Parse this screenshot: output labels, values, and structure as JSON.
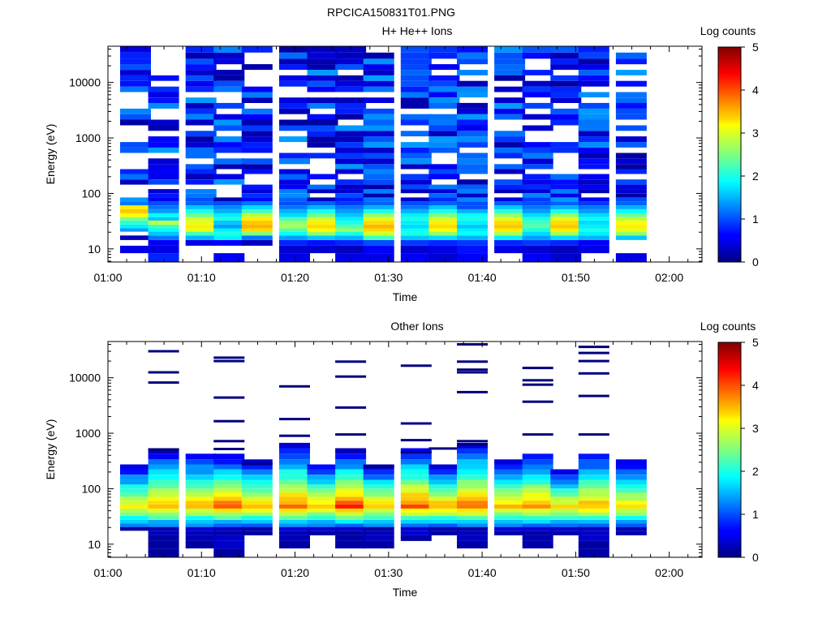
{
  "figure_title": "RPCICA150831T01.PNG",
  "chart_data": [
    {
      "type": "heatmap",
      "title": "H+ He++ Ions",
      "xlabel": "Time",
      "ylabel": "Energy (eV)",
      "x_ticks": [
        "01:00",
        "01:10",
        "01:20",
        "01:30",
        "01:40",
        "01:50",
        "02:00"
      ],
      "y_scale": "log",
      "y_ticks": [
        "10",
        "100",
        "1000",
        "10000"
      ],
      "colorbar": {
        "label": "Log counts",
        "ticks": [
          "0",
          "1",
          "2",
          "3",
          "4",
          "5"
        ],
        "min": 0,
        "max": 5
      },
      "time_columns": [
        "01:03",
        "01:06",
        "01:10",
        "01:13",
        "01:16",
        "01:20",
        "01:23",
        "01:26",
        "01:29",
        "01:33",
        "01:36",
        "01:39",
        "01:43",
        "01:46",
        "01:49",
        "01:52",
        "01:56"
      ],
      "energy_bins_eV": [
        7,
        10,
        13,
        16,
        19,
        22,
        25,
        30,
        35,
        40,
        48,
        56,
        66,
        78,
        92,
        110,
        130,
        160,
        200,
        250,
        300,
        380,
        480,
        600,
        750,
        950,
        1200,
        1500,
        1900,
        2400,
        3000,
        3800,
        4800,
        6000,
        7500,
        9500,
        12000,
        15000,
        19000,
        24000,
        30000,
        40000
      ],
      "low_profile_log_counts": [
        [
          0,
          0.5,
          0,
          0.3,
          0,
          1.4,
          1.8,
          2.1,
          2.5,
          3.1,
          3.4,
          3.2,
          1.2
        ],
        [
          0.8,
          0.5,
          0.6,
          1.2,
          1.6,
          1.9,
          2.2,
          2.8,
          1.6,
          1.9,
          1.4,
          1.2,
          1.0
        ],
        [
          0,
          0,
          0.5,
          1.5,
          2.2,
          3.0,
          3.2,
          3.0,
          2.9,
          2.4,
          2.0,
          1.6,
          1.1
        ],
        [
          0.6,
          0,
          0.6,
          1.8,
          2.0,
          1.8,
          1.4,
          1.6,
          2.0,
          1.8,
          1.5,
          1.3,
          1.0
        ],
        [
          0,
          0,
          0.3,
          1.2,
          2.5,
          3.3,
          3.5,
          3.4,
          3.2,
          2.8,
          2.2,
          1.7,
          1.2
        ],
        [
          0.5,
          0.4,
          0.8,
          1.4,
          1.9,
          2.3,
          2.7,
          2.6,
          2.2,
          1.7,
          1.5,
          1.2,
          1.0
        ],
        [
          0,
          0.4,
          0.7,
          1.6,
          2.6,
          3.1,
          3.3,
          3.2,
          2.9,
          2.4,
          2.0,
          1.5,
          1.1
        ],
        [
          0.5,
          0.3,
          0.8,
          1.5,
          2.0,
          2.6,
          2.3,
          2.0,
          1.8,
          1.6,
          1.4,
          1.2,
          0.9
        ],
        [
          0.5,
          0.6,
          1.0,
          2.2,
          2.9,
          3.3,
          3.5,
          3.3,
          3.0,
          2.6,
          2.0,
          1.5,
          1.1
        ],
        [
          0.6,
          0.4,
          0.9,
          1.6,
          2.0,
          1.9,
          1.7,
          1.8,
          2.0,
          1.8,
          1.5,
          1.2,
          1.0
        ],
        [
          0.4,
          0.5,
          0.8,
          1.7,
          2.6,
          3.1,
          3.3,
          3.2,
          2.9,
          2.5,
          2.0,
          1.6,
          1.1
        ],
        [
          0.6,
          0.7,
          0.9,
          1.5,
          1.9,
          1.8,
          1.6,
          1.8,
          2.0,
          1.9,
          1.5,
          1.0,
          1.0
        ],
        [
          0,
          0.5,
          0.8,
          1.8,
          2.7,
          3.2,
          3.4,
          3.3,
          3.0,
          2.6,
          2.1,
          1.6,
          1.1
        ],
        [
          0.6,
          0.4,
          0.9,
          1.4,
          1.7,
          2.0,
          2.3,
          2.2,
          2.0,
          1.7,
          1.4,
          1.2,
          1.0
        ],
        [
          0.4,
          0.3,
          0.8,
          1.7,
          2.7,
          3.2,
          3.4,
          3.3,
          3.0,
          2.6,
          2.0,
          1.5,
          1.1
        ],
        [
          0,
          0.5,
          0.6,
          1.5,
          1.8,
          2.0,
          1.8,
          1.7,
          1.9,
          1.7,
          1.4,
          1.2,
          0.9
        ],
        [
          0.5,
          0,
          0,
          1.6,
          2.6,
          3.0,
          3.2,
          3.1,
          2.8,
          2.4,
          1.9,
          1.5,
          1.1
        ]
      ]
    },
    {
      "type": "heatmap",
      "title": "Other Ions",
      "xlabel": "Time",
      "ylabel": "Energy (eV)",
      "x_ticks": [
        "01:00",
        "01:10",
        "01:20",
        "01:30",
        "01:40",
        "01:50",
        "02:00"
      ],
      "y_scale": "log",
      "y_ticks": [
        "10",
        "100",
        "1000",
        "10000"
      ],
      "colorbar": {
        "label": "Log counts",
        "ticks": [
          "0",
          "1",
          "2",
          "3",
          "4",
          "5"
        ],
        "min": 0,
        "max": 5
      },
      "time_columns": [
        "01:03",
        "01:06",
        "01:10",
        "01:13",
        "01:16",
        "01:20",
        "01:23",
        "01:26",
        "01:29",
        "01:33",
        "01:36",
        "01:39",
        "01:43",
        "01:46",
        "01:49",
        "01:52",
        "01:56"
      ],
      "energy_bins_eV": [
        7,
        10,
        13,
        16,
        19,
        22,
        25,
        30,
        35,
        40,
        48,
        56,
        66,
        78,
        92,
        110,
        130,
        160,
        200,
        250,
        300,
        380,
        480,
        600,
        750,
        950,
        1200,
        1500,
        1900,
        2400,
        3000,
        3800,
        4800,
        6000,
        7500,
        9500,
        12000,
        15000,
        19000,
        24000,
        30000,
        40000
      ],
      "column_peak_log_counts": [
        3.3,
        3.6,
        3.5,
        3.9,
        3.4,
        3.8,
        3.4,
        4.1,
        3.5,
        3.9,
        3.6,
        3.8,
        3.4,
        3.6,
        3.3,
        3.5,
        3.3
      ],
      "column_top_eV": [
        250,
        480,
        450,
        400,
        320,
        650,
        280,
        480,
        260,
        560,
        260,
        700,
        300,
        450,
        220,
        450,
        300
      ],
      "column_bottom_eV": [
        19,
        7,
        10,
        7,
        16,
        9,
        16,
        9,
        9,
        11,
        16,
        9,
        16,
        9,
        16,
        7,
        16
      ],
      "sparse_high_energy_lines_eV": [
        [],
        [
          30000,
          12500,
          8200,
          510
        ],
        [],
        [
          23000,
          20000,
          4400,
          1650,
          720,
          520
        ],
        [
          280
        ],
        [
          7000,
          1800,
          900
        ],
        [],
        [
          19500,
          10500,
          2900,
          950
        ],
        [
          250
        ],
        [
          16500,
          1500,
          750,
          450
        ],
        [
          530
        ],
        [
          40000,
          19500,
          14000,
          12500,
          5500,
          720,
          630
        ],
        [],
        [
          15000,
          9000,
          7500,
          3700,
          950
        ],
        [],
        [
          36000,
          28000,
          20000,
          12000,
          4700,
          950
        ],
        []
      ]
    }
  ]
}
